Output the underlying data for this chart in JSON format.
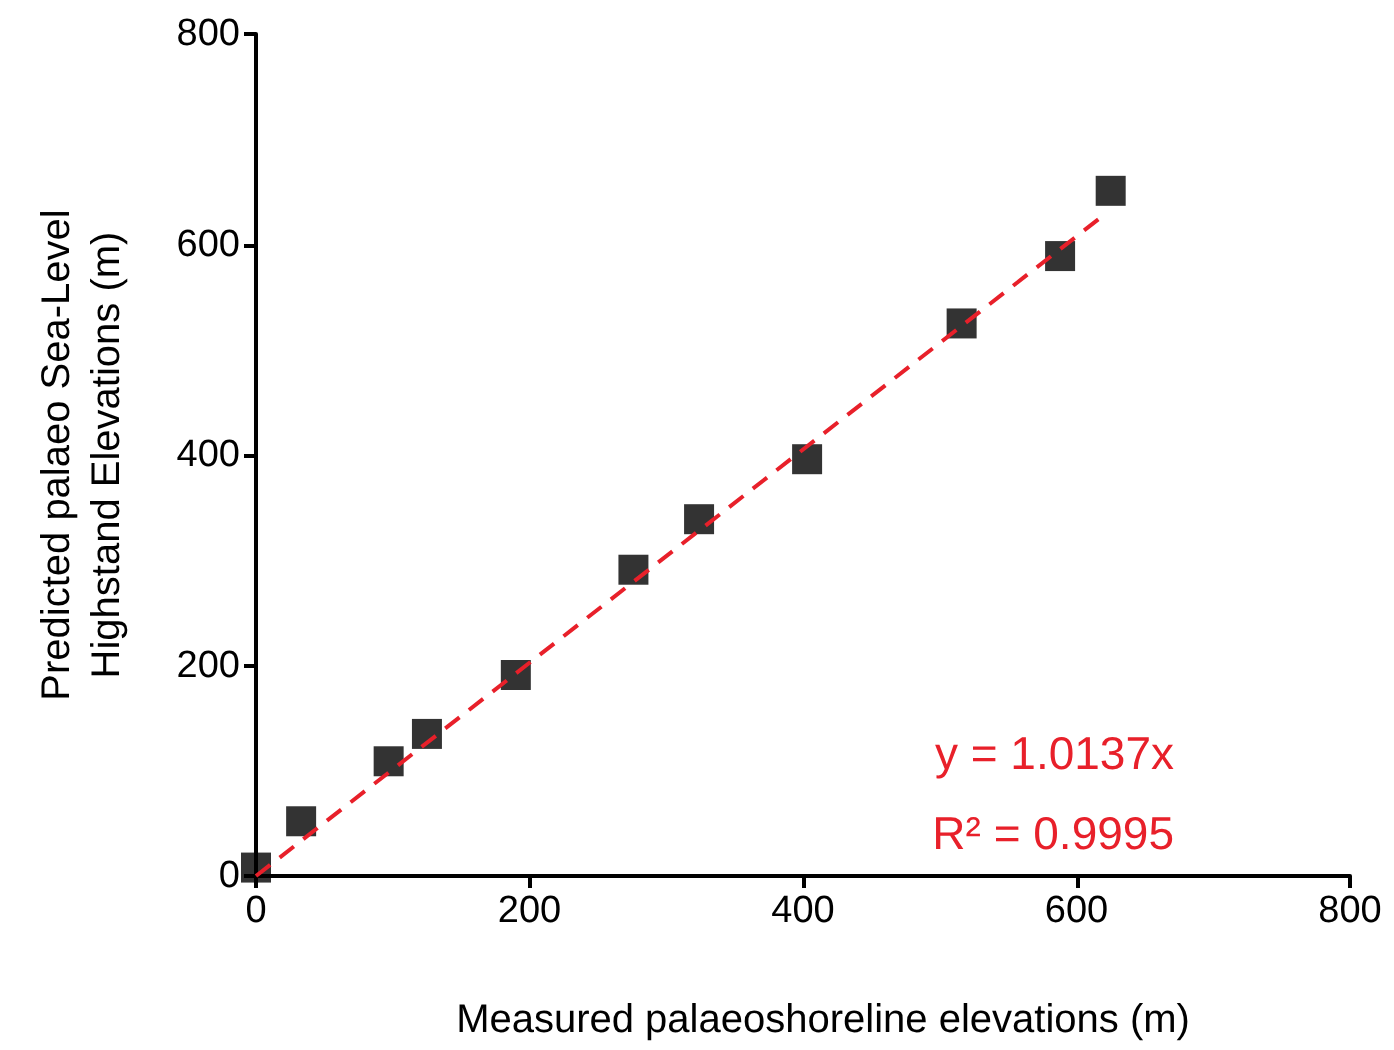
{
  "chart_data": {
    "type": "scatter",
    "xlabel": "Measured palaeoshoreline elevations (m)",
    "ylabel": "Predicted palaeo Sea-Level\nHighstand Elevations (m)",
    "series": [
      {
        "color": "#000000",
        "marker": "square",
        "x": [
          0,
          33,
          97,
          125,
          190,
          276,
          324,
          403,
          516,
          588,
          625
        ],
        "values": [
          8,
          52,
          109,
          135,
          191,
          291,
          339,
          396,
          525,
          589,
          651
        ]
      },
      {
        "type": "line",
        "color": "#e8202a",
        "line_style": "dashed",
        "marker": "none",
        "x": [
          0,
          620
        ],
        "values": [
          0,
          628
        ]
      }
    ],
    "annotations": [
      "y = 1.0137x",
      "R² = 0.9995"
    ],
    "xlim": [
      0,
      800
    ],
    "xticks": [
      0,
      200,
      400,
      600,
      800
    ],
    "ylim": [
      0,
      800
    ],
    "yticks": [
      0,
      200,
      400,
      600,
      800
    ],
    "grid": false
  }
}
